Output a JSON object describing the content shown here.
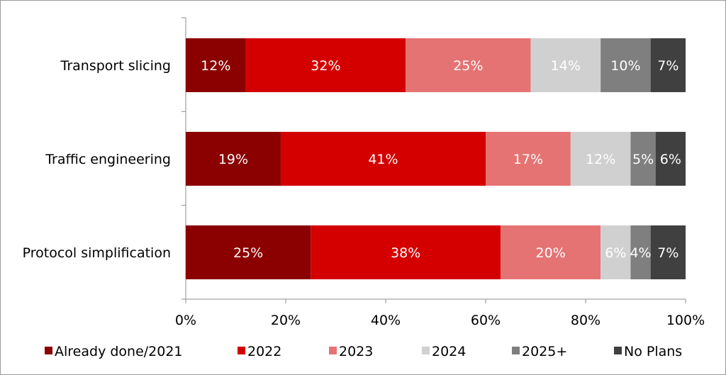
{
  "chart_data": {
    "type": "bar",
    "orientation": "horizontal",
    "stacked": true,
    "percent_stacked": true,
    "categories": [
      "Transport slicing",
      "Traffic engineering",
      "Protocol simplification"
    ],
    "series": [
      {
        "name": "Already done/2021",
        "color": "#8b0000",
        "values": [
          12,
          19,
          25
        ]
      },
      {
        "name": "2022",
        "color": "#d40000",
        "values": [
          32,
          41,
          38
        ]
      },
      {
        "name": "2023",
        "color": "#e57373",
        "values": [
          25,
          17,
          20
        ]
      },
      {
        "name": "2024",
        "color": "#d0d0d0",
        "values": [
          14,
          12,
          6
        ]
      },
      {
        "name": "2025+",
        "color": "#7f7f7f",
        "values": [
          10,
          5,
          4
        ]
      },
      {
        "name": "No Plans",
        "color": "#404040",
        "values": [
          7,
          6,
          7
        ]
      }
    ],
    "data_labels": [
      [
        "12%",
        "32%",
        "25%",
        "14%",
        "10%",
        "7%"
      ],
      [
        "19%",
        "41%",
        "17%",
        "12%",
        "5%",
        "6%"
      ],
      [
        "25%",
        "38%",
        "20%",
        "6%",
        "4%",
        "7%"
      ]
    ],
    "xticks": [
      "0%",
      "20%",
      "40%",
      "60%",
      "80%",
      "100%"
    ],
    "xlim": [
      0,
      100
    ],
    "grid": false,
    "legend_position": "bottom"
  }
}
